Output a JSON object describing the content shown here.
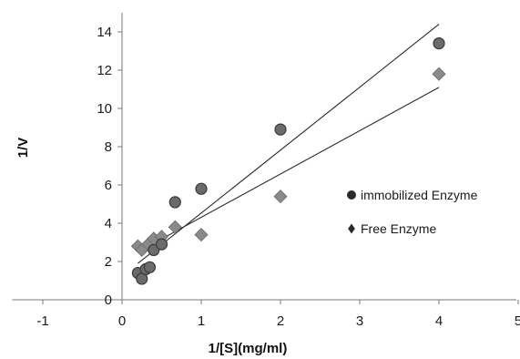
{
  "chart_data": {
    "type": "scatter",
    "title": "",
    "xlabel": "1/[S](mg/ml)",
    "ylabel": "1/V",
    "xlim": [
      -1.5,
      5
    ],
    "ylim": [
      0,
      15
    ],
    "xticks": [
      "-1",
      "0",
      "1",
      "2",
      "3",
      "4",
      "5"
    ],
    "yticks": [
      "0",
      "2",
      "4",
      "6",
      "8",
      "10",
      "12",
      "14"
    ],
    "grid": false,
    "legend_position": "right",
    "series": [
      {
        "name": "immobilized Enzyme",
        "marker": "circle",
        "color": "#6b6b6b",
        "x": [
          0.2,
          0.25,
          0.3,
          0.35,
          0.4,
          0.5,
          0.67,
          1.0,
          2.0,
          4.0
        ],
        "y": [
          1.4,
          1.1,
          1.6,
          1.7,
          2.6,
          2.9,
          5.1,
          5.8,
          8.9,
          13.4
        ],
        "trendline": {
          "x": [
            0.2,
            4.0
          ],
          "y": [
            1.9,
            14.4
          ]
        }
      },
      {
        "name": "Free Enzyme",
        "marker": "diamond",
        "color": "#8a8a8a",
        "x": [
          0.2,
          0.25,
          0.33,
          0.4,
          0.5,
          0.67,
          1.0,
          2.0,
          4.0
        ],
        "y": [
          2.8,
          2.6,
          2.9,
          3.2,
          3.3,
          3.8,
          3.4,
          5.4,
          11.8
        ],
        "trendline": {
          "x": [
            0.2,
            4.0
          ],
          "y": [
            2.5,
            11.1
          ]
        }
      }
    ]
  }
}
